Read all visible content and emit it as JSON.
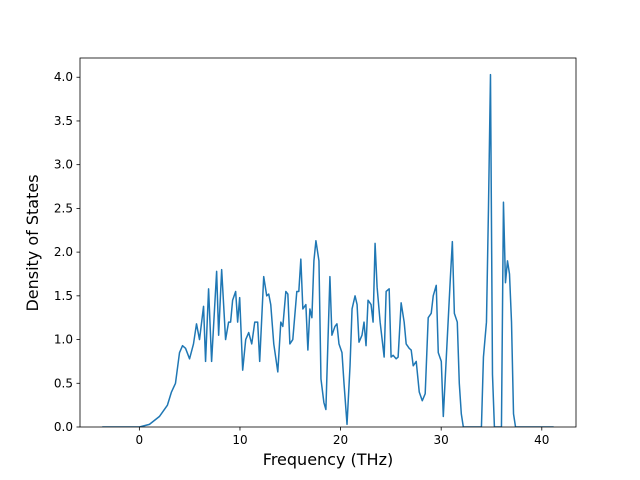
{
  "chart_data": {
    "type": "line",
    "xlabel": "Frequency (THz)",
    "ylabel": "Density of States",
    "xlim": [
      -5.9,
      43.4
    ],
    "ylim": [
      0,
      4.22
    ],
    "xticks": [
      0,
      10,
      20,
      30,
      40
    ],
    "yticks": [
      {
        "value": 0,
        "label": "0.0"
      },
      0.5,
      {
        "value": 1,
        "label": "1.0"
      },
      1.5,
      {
        "value": 2,
        "label": "2.0"
      },
      2.5,
      {
        "value": 3,
        "label": "3.0"
      },
      3.5,
      {
        "value": 4,
        "label": "4.0"
      }
    ],
    "color": "#1f77b4",
    "x": [
      -3.69,
      0,
      1.0,
      1.99,
      2.79,
      3.19,
      3.59,
      3.99,
      4.29,
      4.59,
      4.99,
      5.38,
      5.68,
      5.98,
      6.38,
      6.58,
      6.88,
      7.18,
      7.68,
      7.88,
      8.18,
      8.57,
      8.87,
      9.07,
      9.27,
      9.57,
      9.77,
      9.97,
      10.27,
      10.57,
      10.87,
      11.17,
      11.47,
      11.76,
      11.96,
      12.36,
      12.66,
      12.86,
      13.06,
      13.36,
      13.76,
      14.06,
      14.26,
      14.56,
      14.76,
      14.96,
      15.25,
      15.65,
      15.85,
      16.05,
      16.25,
      16.55,
      16.75,
      16.95,
      17.15,
      17.35,
      17.55,
      17.85,
      18.05,
      18.34,
      18.54,
      18.94,
      19.14,
      19.44,
      19.64,
      19.84,
      20.14,
      20.34,
      20.64,
      20.94,
      21.14,
      21.44,
      21.64,
      21.83,
      22.13,
      22.33,
      22.53,
      22.73,
      23.03,
      23.23,
      23.43,
      23.63,
      23.93,
      24.13,
      24.33,
      24.53,
      24.83,
      25.02,
      25.22,
      25.52,
      25.72,
      26.02,
      26.32,
      26.52,
      26.82,
      27.02,
      27.22,
      27.52,
      27.82,
      28.12,
      28.41,
      28.71,
      29.01,
      29.21,
      29.51,
      29.71,
      30.01,
      30.21,
      30.51,
      30.91,
      31.11,
      31.31,
      31.6,
      31.8,
      32.0,
      32.2,
      34.0,
      34.2,
      34.5,
      34.7,
      34.9,
      35.1,
      35.29,
      35.99,
      36.19,
      36.39,
      36.59,
      36.79,
      36.99,
      37.19,
      37.39,
      41.18
    ],
    "values": [
      0,
      0,
      0.03,
      0.12,
      0.25,
      0.4,
      0.5,
      0.85,
      0.93,
      0.9,
      0.78,
      0.95,
      1.18,
      1.0,
      1.38,
      0.75,
      1.58,
      0.75,
      1.78,
      1.05,
      1.8,
      1.0,
      1.2,
      1.2,
      1.45,
      1.55,
      1.2,
      1.48,
      0.65,
      1.0,
      1.08,
      0.95,
      1.2,
      1.2,
      0.75,
      1.72,
      1.5,
      1.52,
      1.4,
      0.95,
      0.63,
      1.2,
      1.15,
      1.55,
      1.52,
      0.95,
      1.0,
      1.55,
      1.55,
      1.92,
      1.35,
      1.4,
      0.88,
      1.35,
      1.25,
      1.9,
      2.13,
      1.9,
      0.55,
      0.28,
      0.2,
      1.72,
      1.05,
      1.15,
      1.18,
      0.95,
      0.85,
      0.5,
      0.03,
      0.7,
      1.35,
      1.5,
      1.4,
      0.97,
      1.05,
      1.2,
      0.93,
      1.45,
      1.4,
      1.2,
      2.1,
      1.6,
      1.2,
      1.0,
      0.8,
      1.55,
      1.58,
      0.8,
      0.82,
      0.78,
      0.8,
      1.42,
      1.2,
      0.95,
      0.9,
      0.88,
      0.7,
      0.75,
      0.4,
      0.3,
      0.38,
      1.25,
      1.3,
      1.5,
      1.62,
      0.85,
      0.75,
      0.12,
      0.8,
      1.7,
      2.12,
      1.3,
      1.2,
      0.5,
      0.15,
      0,
      0,
      0.8,
      1.2,
      2.5,
      4.03,
      0.6,
      0,
      0,
      2.57,
      1.65,
      1.9,
      1.75,
      1.2,
      0.15,
      0,
      0
    ]
  }
}
